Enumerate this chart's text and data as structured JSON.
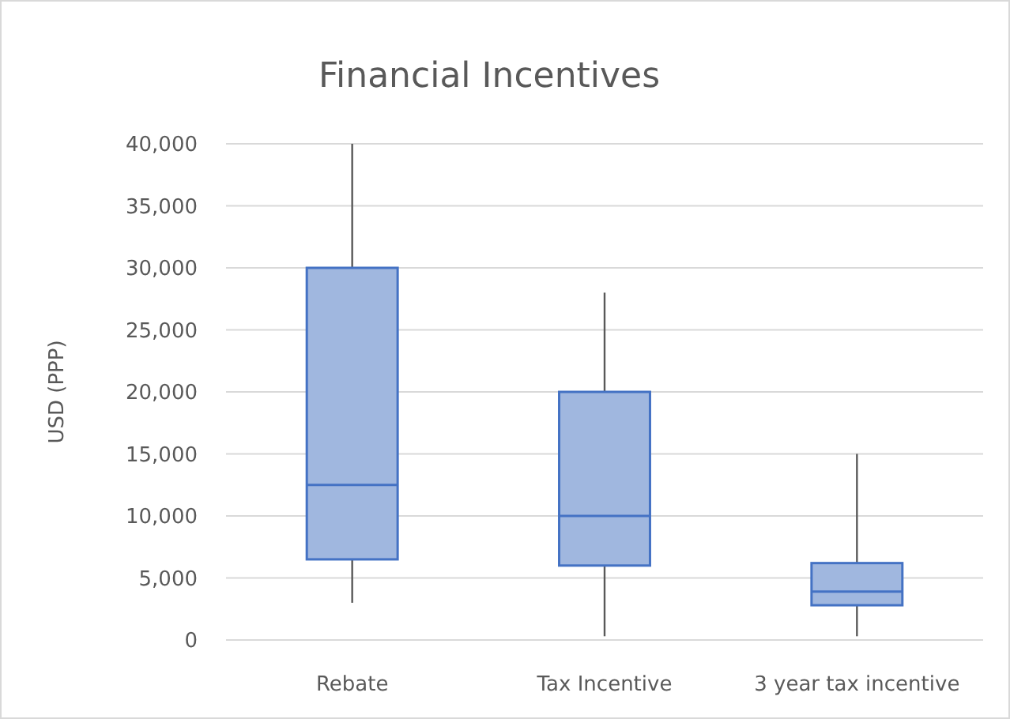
{
  "chart_data": {
    "type": "box",
    "title": "Financial Incentives",
    "ylabel": "USD  (PPP)",
    "categories": [
      "Rebate",
      "Tax Incentive",
      "3 year tax incentive"
    ],
    "boxes": [
      {
        "low": 3000,
        "q1": 6500,
        "median": 12500,
        "q3": 30000,
        "high": 40000
      },
      {
        "low": 300,
        "q1": 6000,
        "median": 10000,
        "q3": 20000,
        "high": 28000
      },
      {
        "low": 300,
        "q1": 2800,
        "median": 3900,
        "q3": 6200,
        "high": 15000
      }
    ],
    "color": "#a0b7df",
    "ylim": [
      0,
      40000
    ],
    "yticks": [
      {
        "value": 0,
        "label": "0"
      },
      {
        "value": 5000,
        "label": "5,000"
      },
      {
        "value": 10000,
        "label": "10,000"
      },
      {
        "value": 15000,
        "label": "15,000"
      },
      {
        "value": 20000,
        "label": "20,000"
      },
      {
        "value": 25000,
        "label": "25,000"
      },
      {
        "value": 30000,
        "label": "30,000"
      },
      {
        "value": 35000,
        "label": "35,000"
      },
      {
        "value": 40000,
        "label": "40,000"
      }
    ],
    "grid": "y"
  }
}
